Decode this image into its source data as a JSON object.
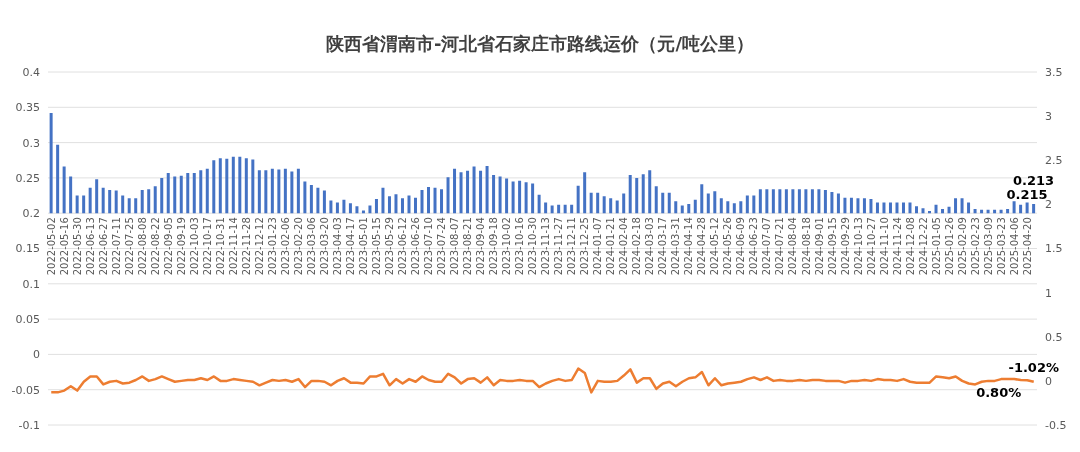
{
  "chart_data": {
    "type": "bar",
    "title": "陕西省渭南市-河北省石家庄市路线运价（元/吨公里）",
    "categories": [
      "2022-05-02",
      null,
      "2022-05-16",
      null,
      "2022-05-30",
      null,
      "2022-06-13",
      null,
      "2022-06-27",
      null,
      "2022-07-11",
      null,
      "2022-07-25",
      null,
      "2022-08-08",
      null,
      "2022-08-22",
      null,
      "2022-09-05",
      null,
      "2022-09-19",
      null,
      "2022-10-03",
      null,
      "2022-10-17",
      null,
      "2022-10-31",
      null,
      "2022-11-14",
      null,
      "2022-11-28",
      null,
      "2022-12-12",
      null,
      "2023-01-23",
      null,
      "2023-02-06",
      null,
      "2023-02-20",
      null,
      "2023-03-06",
      null,
      "2023-03-20",
      null,
      "2023-04-03",
      null,
      "2023-04-17",
      null,
      "2023-05-01",
      null,
      "2023-05-15",
      null,
      "2023-05-29",
      null,
      "2023-06-12",
      null,
      "2023-06-26",
      null,
      "2023-07-10",
      null,
      "2023-07-24",
      null,
      "2023-08-07",
      null,
      "2023-08-21",
      null,
      "2023-09-04",
      null,
      "2023-09-18",
      null,
      "2023-10-02",
      null,
      "2023-10-16",
      null,
      "2023-10-30",
      null,
      "2023-11-13",
      null,
      "2023-11-27",
      null,
      "2023-12-11",
      null,
      "2023-12-25",
      null,
      "2024-01-07",
      null,
      "2024-01-21",
      null,
      "2024-02-04",
      null,
      "2024-02-18",
      null,
      "2024-03-03",
      null,
      "2024-03-17",
      null,
      "2024-03-31",
      null,
      "2024-04-14",
      null,
      "2024-04-28",
      null,
      "2024-05-12",
      null,
      "2024-05-26",
      null,
      "2024-06-09",
      null,
      "2024-06-23",
      null,
      "2024-07-07",
      null,
      "2024-07-21",
      null,
      "2024-08-04",
      null,
      "2024-08-18",
      null,
      "2024-09-01",
      null,
      "2024-09-15",
      null,
      "2024-09-29",
      null,
      "2024-10-13",
      null,
      "2024-10-27",
      null,
      "2024-11-10",
      null,
      "2024-11-24",
      null,
      "2024-12-08",
      null,
      "2024-12-22",
      null,
      "2025-01-05",
      null,
      "2025-01-26",
      null,
      "2025-02-09",
      null,
      "2025-02-23",
      null,
      "2025-03-09",
      null,
      "2025-03-23",
      null,
      "2025-04-06",
      null,
      "2025-04-20",
      null
    ],
    "ylim": [
      -0.1,
      0.4
    ],
    "yticks": [
      -0.1,
      -0.05,
      0,
      0.05,
      0.1,
      0.15,
      0.2,
      0.25,
      0.3,
      0.35,
      0.4
    ],
    "y2lim": [
      -0.5,
      3.5
    ],
    "y2ticks": [
      -0.5,
      0,
      0.5,
      1,
      1.5,
      2,
      2.5,
      3,
      3.5
    ],
    "grid": "y",
    "series": [
      {
        "type": "bar",
        "color": "#4472c4",
        "base": [
          0.2,
          0.2,
          0.2,
          0.2,
          0.2,
          0.2,
          0.2,
          0.2,
          0.2,
          0.2,
          0.2,
          0.2,
          0.2,
          0.2,
          0.2,
          0.2,
          0.2,
          0.2,
          0.2,
          0.2,
          0.2,
          0.2,
          0.2,
          0.2,
          0.2,
          0.2,
          0.2,
          0.2,
          0.2,
          0.2,
          0.2,
          0.2,
          0.2,
          0.2,
          0.2,
          0.2,
          0.2,
          0.2,
          0.2,
          0.2,
          0.2,
          0.2,
          0.2,
          0.2,
          0.2,
          0.2,
          0.2,
          0.2,
          0.2,
          0.2,
          0.2,
          0.2,
          0.2,
          0.2,
          0.2,
          0.2,
          0.2,
          0.2,
          0.2,
          0.2,
          0.2,
          0.2,
          0.2,
          0.2,
          0.2,
          0.2,
          0.2,
          0.2,
          0.2,
          0.2,
          0.2,
          0.2,
          0.2,
          0.2,
          0.2,
          0.2,
          0.2,
          0.2,
          0.2,
          0.2,
          0.2,
          0.2,
          0.2,
          0.2,
          0.2,
          0.2,
          0.2,
          0.2,
          0.2,
          0.2,
          0.2,
          0.2,
          0.2,
          0.2,
          0.2,
          0.2,
          0.2,
          0.2,
          0.2,
          0.2,
          0.2,
          0.2,
          0.2,
          0.2,
          0.2,
          0.2,
          0.2,
          0.2,
          0.2,
          0.2,
          0.2,
          0.2,
          0.2,
          0.2,
          0.2,
          0.2,
          0.2,
          0.2,
          0.2,
          0.2,
          0.2,
          0.2,
          0.2,
          0.2,
          0.2,
          0.2,
          0.2,
          0.2,
          0.2,
          0.2,
          0.2,
          0.2,
          0.2,
          0.2,
          0.2,
          0.2,
          0.2,
          0.2,
          0.2,
          0.2,
          0.2,
          0.2,
          0.2,
          0.2,
          0.2,
          0.2,
          0.2,
          0.2,
          0.2,
          0.2,
          0.2,
          0.2
        ],
        "values": [
          0.142,
          0.097,
          0.066,
          0.052,
          0.025,
          0.025,
          0.036,
          0.048,
          0.036,
          0.033,
          0.032,
          0.025,
          0.021,
          0.021,
          0.033,
          0.034,
          0.038,
          0.05,
          0.057,
          0.052,
          0.053,
          0.057,
          0.057,
          0.061,
          0.063,
          0.075,
          0.078,
          0.077,
          0.08,
          0.08,
          0.078,
          0.076,
          0.061,
          0.061,
          0.063,
          0.062,
          0.063,
          0.059,
          0.063,
          0.045,
          0.04,
          0.036,
          0.032,
          0.018,
          0.015,
          0.019,
          0.014,
          0.01,
          0.004,
          0.011,
          0.02,
          0.036,
          0.024,
          0.027,
          0.021,
          0.025,
          0.022,
          0.033,
          0.037,
          0.036,
          0.034,
          0.051,
          0.063,
          0.058,
          0.06,
          0.066,
          0.06,
          0.067,
          0.054,
          0.052,
          0.049,
          0.045,
          0.046,
          0.044,
          0.042,
          0.026,
          0.015,
          0.011,
          0.012,
          0.012,
          0.012,
          0.039,
          0.058,
          0.029,
          0.029,
          0.024,
          0.021,
          0.018,
          0.028,
          0.054,
          0.05,
          0.055,
          0.061,
          0.038,
          0.029,
          0.029,
          0.017,
          0.011,
          0.013,
          0.019,
          0.041,
          0.028,
          0.031,
          0.021,
          0.017,
          0.014,
          0.017,
          0.025,
          0.025,
          0.034,
          0.034,
          0.034,
          0.034,
          0.034,
          0.034,
          0.034,
          0.034,
          0.034,
          0.034,
          0.033,
          0.03,
          0.028,
          0.022,
          0.022,
          0.021,
          0.021,
          0.02,
          0.015,
          0.015,
          0.015,
          0.015,
          0.015,
          0.015,
          0.01,
          0.007,
          0.003,
          0.012,
          0.006,
          0.009,
          0.021,
          0.021,
          0.015,
          0.006,
          0.005,
          0.005,
          0.005,
          0.005,
          0.006,
          0.017,
          0.012,
          0.015,
          0.013
        ],
        "value_labels": [
          null,
          null,
          null,
          null,
          null,
          null,
          null,
          null,
          null,
          null,
          null,
          null,
          null,
          null,
          null,
          null,
          null,
          null,
          null,
          null,
          null,
          null,
          null,
          null,
          null,
          null,
          null,
          null,
          null,
          null,
          null,
          null,
          null,
          null,
          null,
          null,
          null,
          null,
          null,
          null,
          null,
          null,
          null,
          null,
          null,
          null,
          null,
          null,
          null,
          null,
          null,
          null,
          null,
          null,
          null,
          null,
          null,
          null,
          null,
          null,
          null,
          null,
          null,
          null,
          null,
          null,
          null,
          null,
          null,
          null,
          null,
          null,
          null,
          null,
          null,
          null,
          null,
          null,
          null,
          null,
          null,
          null,
          null,
          null,
          null,
          null,
          null,
          null,
          null,
          null,
          null,
          null,
          null,
          null,
          null,
          null,
          null,
          null,
          null,
          null,
          null,
          null,
          null,
          null,
          null,
          null,
          null,
          null,
          null,
          null,
          null,
          null,
          null,
          null,
          null,
          null,
          null,
          null,
          null,
          null,
          null,
          null,
          null,
          null,
          null,
          null,
          null,
          null,
          null,
          null,
          null,
          null,
          null,
          null,
          null,
          null,
          null,
          null,
          null,
          null,
          null,
          null,
          null,
          null,
          null,
          null,
          null,
          null,
          null,
          null,
          "0.215",
          "0.213"
        ]
      },
      {
        "type": "line",
        "axis": "y2",
        "color": "#ed7d31",
        "values": [
          -0.13,
          -0.13,
          -0.11,
          -0.06,
          -0.11,
          -0.01,
          0.05,
          0.05,
          -0.04,
          -0.01,
          0,
          -0.03,
          -0.02,
          0.01,
          0.05,
          0,
          0.02,
          0.05,
          0.02,
          -0.01,
          0,
          0.01,
          0.01,
          0.03,
          0.01,
          0.05,
          0,
          0,
          0.02,
          0.01,
          0,
          -0.01,
          -0.05,
          -0.02,
          0.01,
          0,
          0.01,
          -0.01,
          0.02,
          -0.07,
          0,
          0,
          -0.01,
          -0.05,
          0,
          0.03,
          -0.02,
          -0.02,
          -0.03,
          0.05,
          0.05,
          0.08,
          -0.05,
          0.02,
          -0.03,
          0.02,
          -0.01,
          0.05,
          0.01,
          -0.01,
          -0.01,
          0.08,
          0.04,
          -0.03,
          0.02,
          0.03,
          -0.02,
          0.04,
          -0.05,
          0.01,
          0,
          0,
          0.01,
          0,
          0,
          -0.07,
          -0.03,
          0,
          0.02,
          0,
          0.01,
          0.14,
          0.09,
          -0.13,
          0,
          -0.01,
          -0.01,
          0,
          0.06,
          0.13,
          -0.02,
          0.03,
          0.03,
          -0.09,
          -0.03,
          -0.01,
          -0.06,
          -0.01,
          0.03,
          0.04,
          0.1,
          -0.05,
          0.03,
          -0.05,
          -0.03,
          -0.02,
          -0.01,
          0.02,
          0.04,
          0.01,
          0.04,
          0,
          0.01,
          0,
          0,
          0.01,
          0,
          0.01,
          0.01,
          0,
          0,
          0,
          -0.02,
          0,
          0,
          0.01,
          0,
          0.02,
          0.01,
          0.01,
          0,
          0.02,
          -0.01,
          -0.02,
          -0.02,
          -0.02,
          0.05,
          0.04,
          0.03,
          0.05,
          0,
          -0.03,
          -0.04,
          -0.01,
          0,
          0,
          0.02,
          0.02,
          0.02,
          0.01,
          0.008,
          -0.0102
        ],
        "value_labels": [
          null,
          null,
          null,
          null,
          null,
          null,
          null,
          null,
          null,
          null,
          null,
          null,
          null,
          null,
          null,
          null,
          null,
          null,
          null,
          null,
          null,
          null,
          null,
          null,
          null,
          null,
          null,
          null,
          null,
          null,
          null,
          null,
          null,
          null,
          null,
          null,
          null,
          null,
          null,
          null,
          null,
          null,
          null,
          null,
          null,
          null,
          null,
          null,
          null,
          null,
          null,
          null,
          null,
          null,
          null,
          null,
          null,
          null,
          null,
          null,
          null,
          null,
          null,
          null,
          null,
          null,
          null,
          null,
          null,
          null,
          null,
          null,
          null,
          null,
          null,
          null,
          null,
          null,
          null,
          null,
          null,
          null,
          null,
          null,
          null,
          null,
          null,
          null,
          null,
          null,
          null,
          null,
          null,
          null,
          null,
          null,
          null,
          null,
          null,
          null,
          null,
          null,
          null,
          null,
          null,
          null,
          null,
          null,
          null,
          null,
          null,
          null,
          null,
          null,
          null,
          null,
          null,
          null,
          null,
          null,
          null,
          null,
          null,
          null,
          null,
          null,
          null,
          null,
          null,
          null,
          null,
          null,
          null,
          null,
          null,
          null,
          null,
          null,
          null,
          null,
          null,
          null,
          null,
          null,
          null,
          null,
          null,
          null,
          null,
          null,
          "0.80%",
          "-1.02%"
        ]
      }
    ]
  }
}
